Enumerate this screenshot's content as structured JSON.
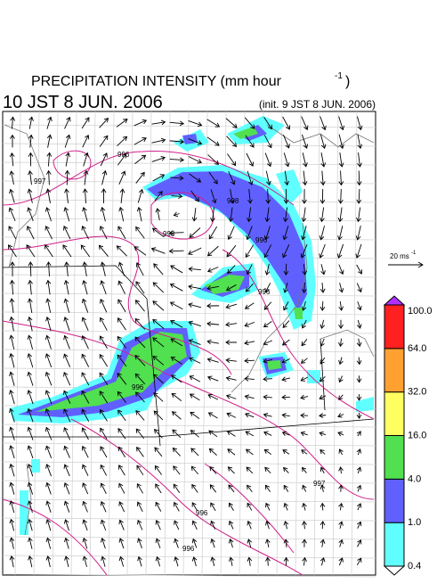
{
  "header": {
    "title": "PRECIPITATION INTENSITY (mm hour",
    "title_exponent": "-1",
    "title_close": ")",
    "valid_time": "10 JST 8 JUN. 2006",
    "init_time": "(init. 9 JST 8 JUN. 2006)"
  },
  "reference_arrow": {
    "label": "20 ms",
    "label_exponent": "-1"
  },
  "colorbar": {
    "top_color": "#b030ff",
    "bottom_color": "#ffffff",
    "segments": [
      {
        "color": "#60ffff"
      },
      {
        "color": "#6060ff"
      },
      {
        "color": "#50e050"
      },
      {
        "color": "#ffff60"
      },
      {
        "color": "#ffa030"
      },
      {
        "color": "#ff2020"
      }
    ],
    "labels": [
      "0.4",
      "1.0",
      "4.0",
      "16.0",
      "32.0",
      "64.0",
      "100.0"
    ]
  },
  "isobar_labels": [
    "996",
    "997",
    "998",
    "998",
    "996",
    "996",
    "996",
    "997",
    "996",
    "996"
  ]
}
